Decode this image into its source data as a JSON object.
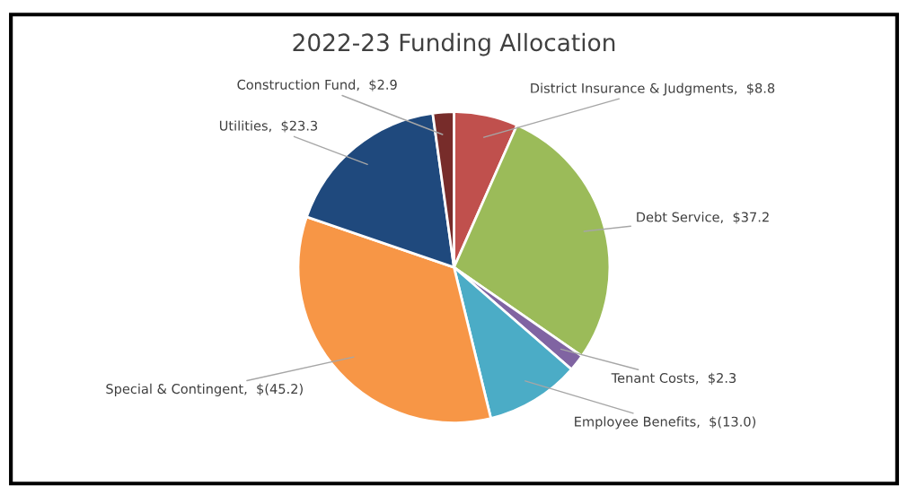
{
  "chart_data": {
    "type": "pie",
    "title": "2022-23 Funding Allocation",
    "categories": [
      "District Insurance & Judgments",
      "Debt Service",
      "Tenant Costs",
      "Employee Benefits",
      "Special & Contingent",
      "Utilities",
      "Construction Fund"
    ],
    "values": [
      8.8,
      37.2,
      2.3,
      13.0,
      45.2,
      23.3,
      2.9
    ],
    "value_labels": [
      "$8.8",
      "$37.2",
      "$2.3",
      "$(13.0)",
      "$(45.2)",
      "$23.3",
      "$2.9"
    ],
    "colors": [
      "#c0504d",
      "#9bbb59",
      "#8064a2",
      "#4bacc6",
      "#f79646",
      "#1f497d",
      "#772c2a"
    ],
    "legend": false
  }
}
